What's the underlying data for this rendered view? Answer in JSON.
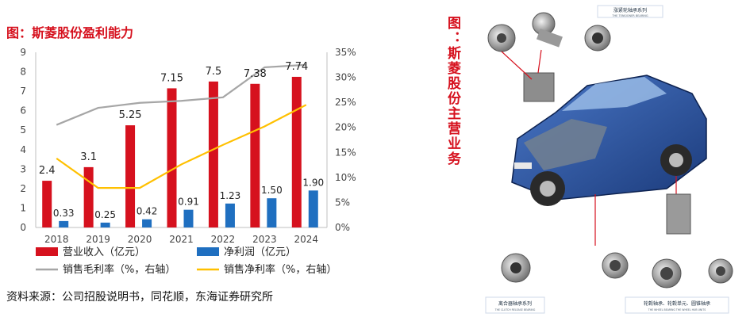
{
  "left_title": "图：斯菱股份盈利能力",
  "right_title": "图：斯菱股份主营业务",
  "source": "资料来源：公司招股说明书，同花顺，东海证券研究所",
  "right_labels": {
    "top": "涨紧轮轴承系列",
    "top_sub": "THE TENSIONER BEARING",
    "bottom_left": "离合器轴承系列",
    "bottom_left_sub": "THE CLUTCH RELEASE BEARING",
    "bottom_right": "轮毂轴承、轮毂单元、圆锥轴承",
    "bottom_right_sub": "THE WHEEL BEARING THE WHEEL HUB UNITS"
  },
  "colors": {
    "bar_revenue": "#d6111e",
    "bar_profit": "#1f6fc0",
    "line_gross": "#a6a6a6",
    "line_net": "#ffc000",
    "accent": "#d6111e"
  },
  "chart_data": {
    "type": "bar",
    "categories": [
      "2018",
      "2019",
      "2020",
      "2021",
      "2022",
      "2023",
      "2024"
    ],
    "series": [
      {
        "name": "营业收入（亿元）",
        "values": [
          2.4,
          3.1,
          5.25,
          7.15,
          7.5,
          7.38,
          7.74
        ],
        "labels": [
          "2.4",
          "3.1",
          "5.25",
          "7.15",
          "7.5",
          "7.38",
          "7.74"
        ],
        "axis": "left"
      },
      {
        "name": "净利润（亿元）",
        "values": [
          0.33,
          0.25,
          0.42,
          0.91,
          1.23,
          1.5,
          1.9
        ],
        "labels": [
          "0.33",
          "0.25",
          "0.42",
          "0.91",
          "1.23",
          "1.50",
          "1.90"
        ],
        "axis": "left"
      },
      {
        "name": "销售毛利率（%，右轴）",
        "values": [
          20.5,
          23.9,
          24.9,
          25.3,
          26.0,
          32.0,
          32.5
        ],
        "axis": "right",
        "type": "line"
      },
      {
        "name": "销售净利率（%，右轴）",
        "values": [
          13.8,
          7.9,
          7.9,
          12.6,
          16.5,
          20.2,
          24.5
        ],
        "axis": "right",
        "type": "line"
      }
    ],
    "yticks_left": [
      "0",
      "1",
      "2",
      "3",
      "4",
      "5",
      "6",
      "7",
      "8",
      "9"
    ],
    "yticks_right": [
      "0%",
      "5%",
      "10%",
      "15%",
      "20%",
      "25%",
      "30%",
      "35%"
    ],
    "ylim_left": [
      0,
      9
    ],
    "ylim_right": [
      0,
      35
    ],
    "legend": "bottom",
    "grid": false
  }
}
